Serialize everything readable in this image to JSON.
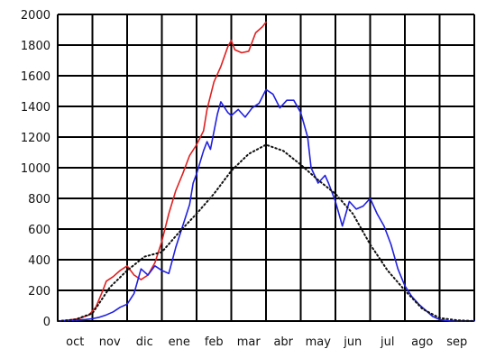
{
  "chart_data": {
    "type": "line",
    "title": "",
    "xlabel": "",
    "ylabel": "",
    "x_categories": [
      "oct",
      "nov",
      "dic",
      "ene",
      "feb",
      "mar",
      "abr",
      "may",
      "jun",
      "jul",
      "ago",
      "sep"
    ],
    "y_ticks": [
      0,
      200,
      400,
      600,
      800,
      1000,
      1200,
      1400,
      1600,
      1800,
      2000
    ],
    "ylim": [
      0,
      2000
    ],
    "grid": true,
    "legend": "none",
    "x_unit": "months since start of October",
    "series": [
      {
        "color": "#e02020",
        "style": "solid",
        "points": [
          [
            0,
            0
          ],
          [
            0.3,
            5
          ],
          [
            0.6,
            15
          ],
          [
            0.9,
            40
          ],
          [
            1.1,
            90
          ],
          [
            1.3,
            200
          ],
          [
            1.4,
            260
          ],
          [
            1.6,
            290
          ],
          [
            1.8,
            330
          ],
          [
            2.0,
            360
          ],
          [
            2.2,
            300
          ],
          [
            2.4,
            270
          ],
          [
            2.6,
            300
          ],
          [
            2.8,
            380
          ],
          [
            3.0,
            520
          ],
          [
            3.2,
            700
          ],
          [
            3.4,
            850
          ],
          [
            3.6,
            960
          ],
          [
            3.8,
            1080
          ],
          [
            4.0,
            1150
          ],
          [
            4.2,
            1240
          ],
          [
            4.3,
            1380
          ],
          [
            4.5,
            1560
          ],
          [
            4.7,
            1660
          ],
          [
            4.9,
            1790
          ],
          [
            5.0,
            1830
          ],
          [
            5.1,
            1770
          ],
          [
            5.3,
            1750
          ],
          [
            5.5,
            1760
          ],
          [
            5.7,
            1880
          ],
          [
            5.9,
            1920
          ],
          [
            6.0,
            1950
          ]
        ]
      },
      {
        "color": "#2020e0",
        "style": "solid",
        "points": [
          [
            0,
            0
          ],
          [
            0.5,
            5
          ],
          [
            0.8,
            10
          ],
          [
            1.0,
            15
          ],
          [
            1.2,
            25
          ],
          [
            1.4,
            40
          ],
          [
            1.6,
            60
          ],
          [
            1.8,
            90
          ],
          [
            2.0,
            110
          ],
          [
            2.2,
            180
          ],
          [
            2.4,
            340
          ],
          [
            2.6,
            300
          ],
          [
            2.8,
            360
          ],
          [
            3.0,
            330
          ],
          [
            3.2,
            310
          ],
          [
            3.4,
            480
          ],
          [
            3.6,
            620
          ],
          [
            3.8,
            760
          ],
          [
            3.9,
            900
          ],
          [
            4.0,
            960
          ],
          [
            4.2,
            1110
          ],
          [
            4.3,
            1170
          ],
          [
            4.4,
            1120
          ],
          [
            4.6,
            1350
          ],
          [
            4.7,
            1430
          ],
          [
            4.9,
            1360
          ],
          [
            5.0,
            1340
          ],
          [
            5.2,
            1380
          ],
          [
            5.4,
            1330
          ],
          [
            5.6,
            1390
          ],
          [
            5.8,
            1420
          ],
          [
            6.0,
            1510
          ],
          [
            6.2,
            1480
          ],
          [
            6.4,
            1390
          ],
          [
            6.6,
            1440
          ],
          [
            6.8,
            1440
          ],
          [
            7.0,
            1360
          ],
          [
            7.2,
            1200
          ],
          [
            7.3,
            1000
          ],
          [
            7.5,
            900
          ],
          [
            7.7,
            950
          ],
          [
            7.8,
            900
          ],
          [
            8.0,
            780
          ],
          [
            8.2,
            620
          ],
          [
            8.4,
            780
          ],
          [
            8.6,
            730
          ],
          [
            8.8,
            750
          ],
          [
            9.0,
            800
          ],
          [
            9.2,
            700
          ],
          [
            9.4,
            620
          ],
          [
            9.6,
            500
          ],
          [
            9.8,
            340
          ],
          [
            10.0,
            230
          ],
          [
            10.2,
            160
          ],
          [
            10.4,
            110
          ],
          [
            10.6,
            70
          ],
          [
            10.8,
            30
          ],
          [
            11.0,
            10
          ],
          [
            11.3,
            0
          ],
          [
            12,
            0
          ]
        ]
      },
      {
        "color": "#111111",
        "style": "dotted",
        "points": [
          [
            0,
            0
          ],
          [
            0.5,
            10
          ],
          [
            1.0,
            50
          ],
          [
            1.5,
            220
          ],
          [
            2.0,
            330
          ],
          [
            2.5,
            420
          ],
          [
            3.0,
            450
          ],
          [
            3.5,
            580
          ],
          [
            4.0,
            700
          ],
          [
            4.5,
            830
          ],
          [
            5.0,
            980
          ],
          [
            5.5,
            1090
          ],
          [
            6.0,
            1150
          ],
          [
            6.5,
            1110
          ],
          [
            7.0,
            1020
          ],
          [
            7.5,
            920
          ],
          [
            8.0,
            830
          ],
          [
            8.5,
            700
          ],
          [
            9.0,
            500
          ],
          [
            9.5,
            330
          ],
          [
            10.0,
            200
          ],
          [
            10.5,
            80
          ],
          [
            11.0,
            20
          ],
          [
            11.5,
            5
          ],
          [
            12,
            0
          ]
        ]
      }
    ]
  }
}
